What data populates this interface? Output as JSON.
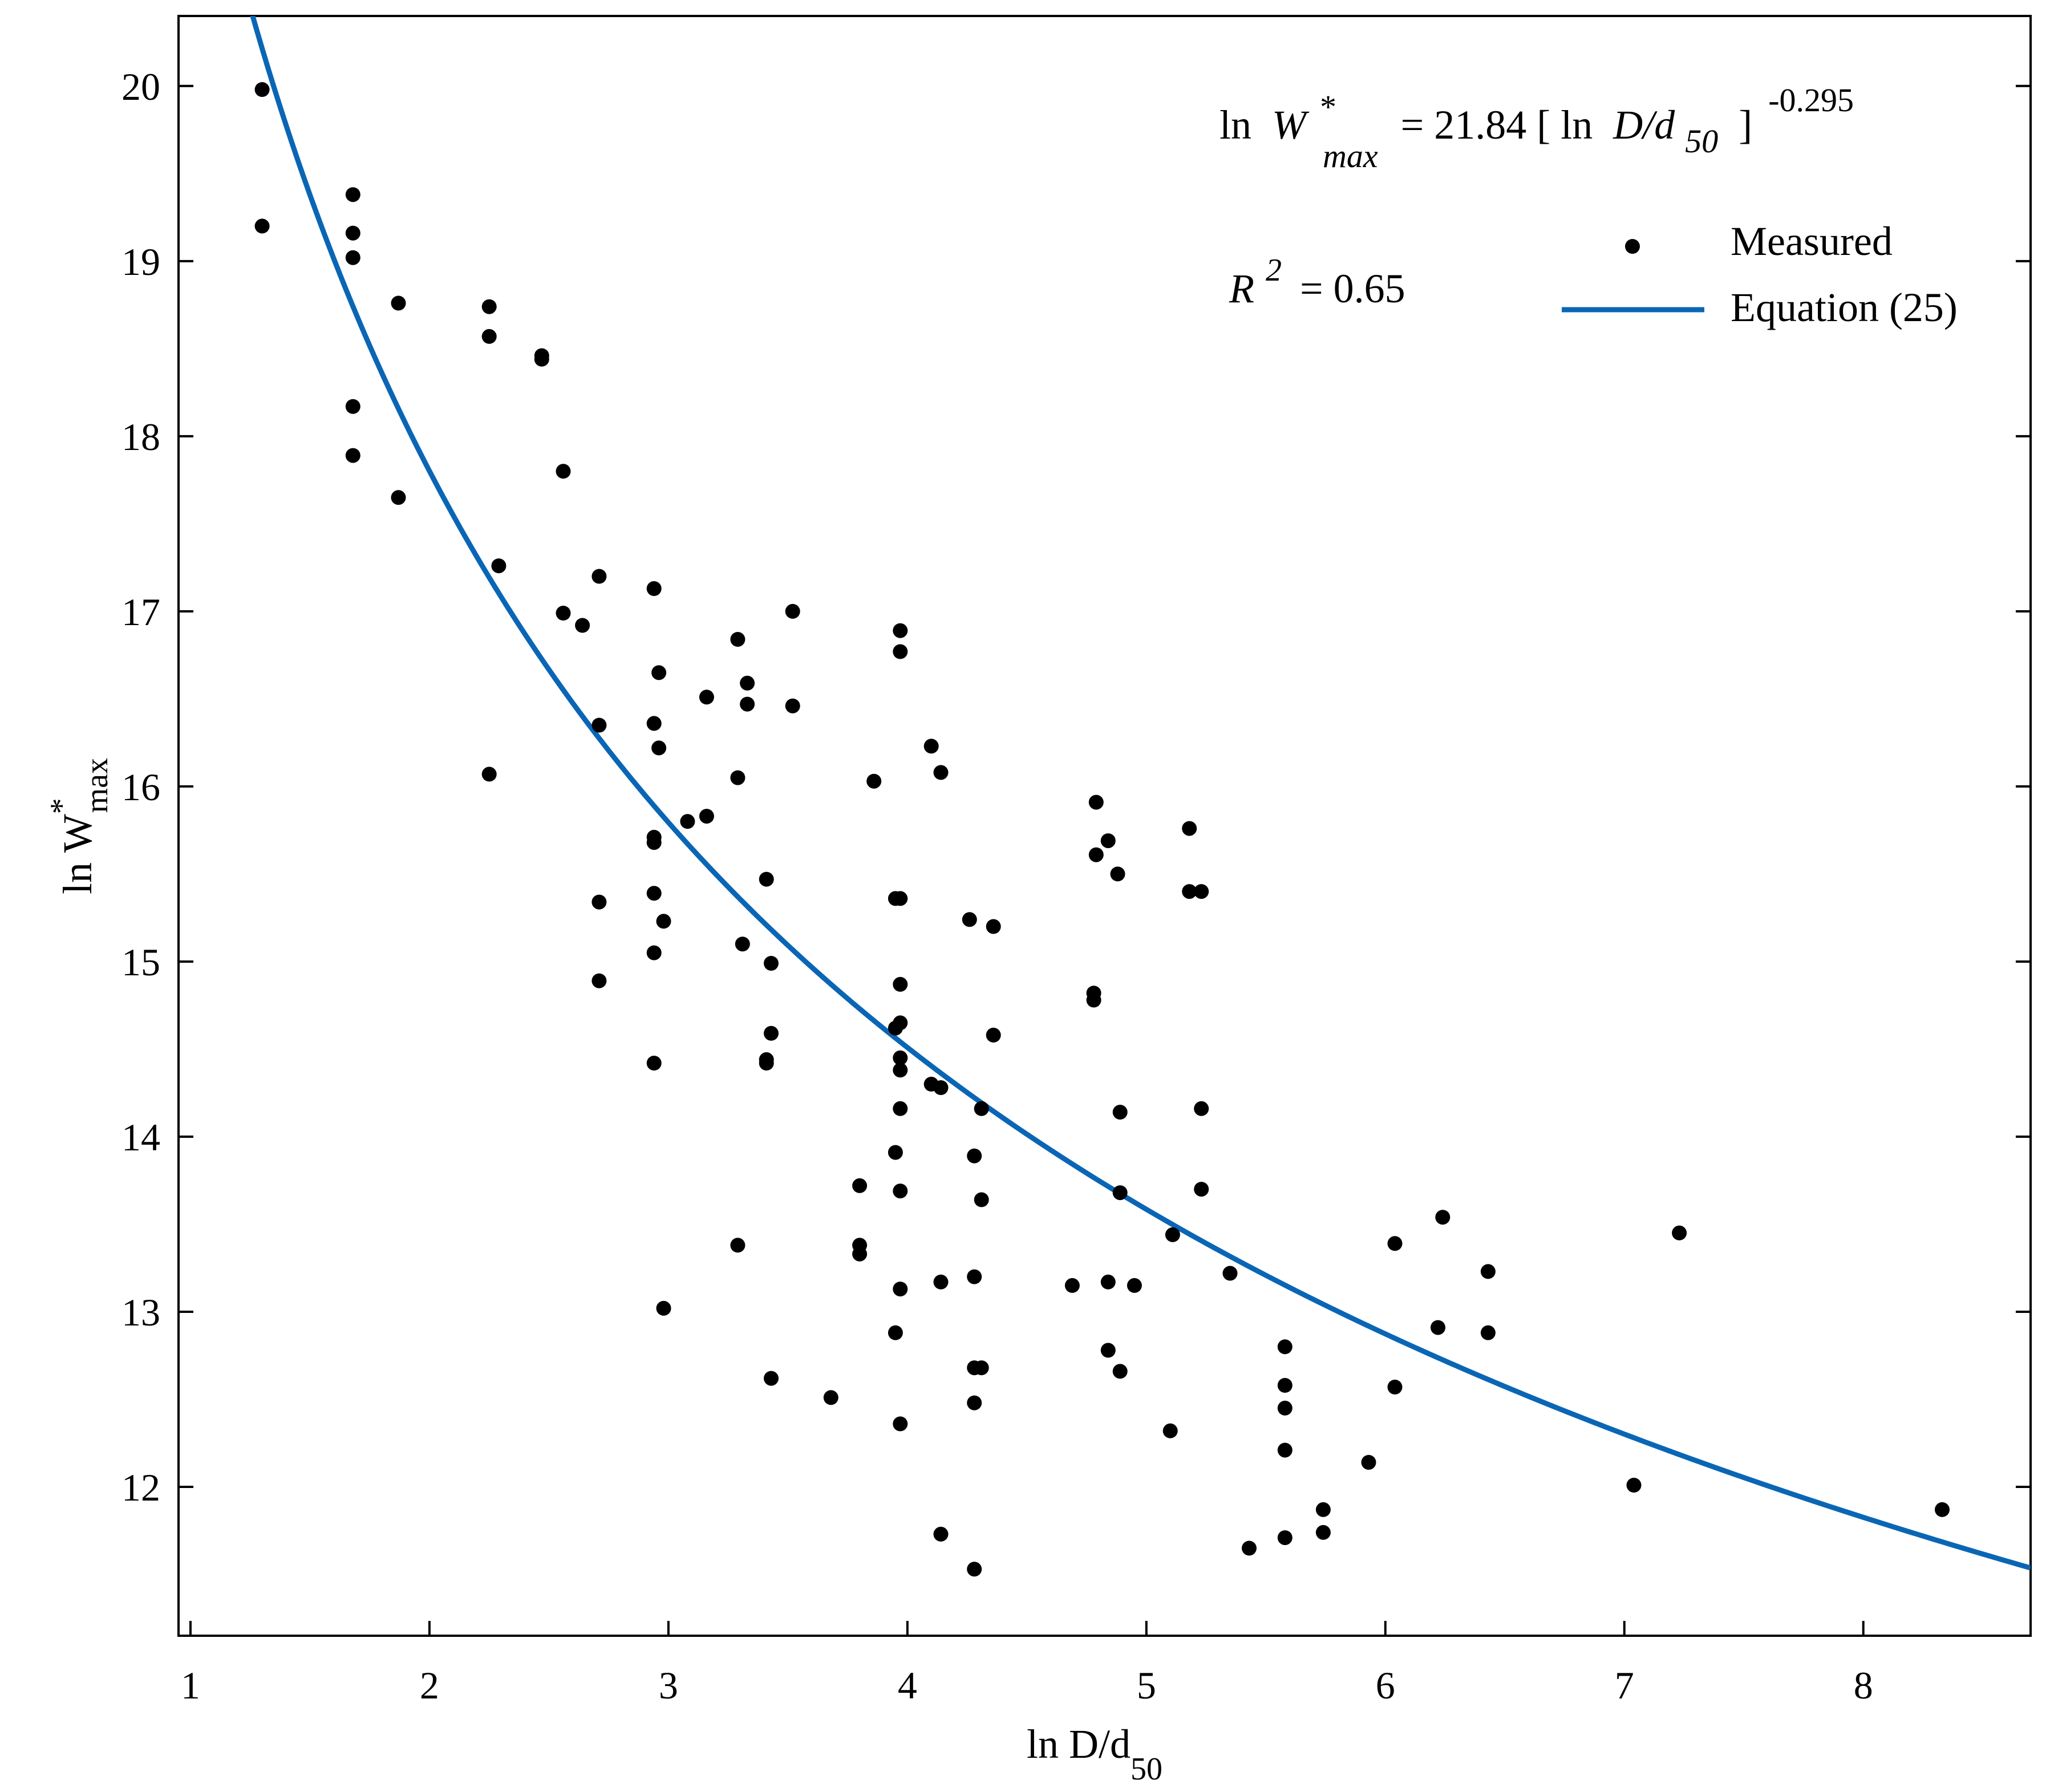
{
  "chart_data": {
    "type": "scatter",
    "title": "",
    "xlabel": "ln D/d",
    "xlabel_sub": "50",
    "ylabel": "ln W",
    "ylabel_sup": "*",
    "ylabel_sub": "max",
    "xlim": [
      0.95,
      8.7
    ],
    "ylim": [
      11.15,
      20.4
    ],
    "xticks": [
      1,
      2,
      3,
      4,
      5,
      6,
      7,
      8
    ],
    "yticks": [
      12,
      13,
      14,
      15,
      16,
      17,
      18,
      19,
      20
    ],
    "grid": false,
    "legend_position": "top-right",
    "colors": {
      "points": "#000000",
      "curve": "#0a66b5",
      "axis": "#000000"
    },
    "equation": {
      "lhs_prefix": "ln",
      "lhs_var": "W",
      "lhs_sup": "*",
      "lhs_sub": "max",
      "rhs_main": "= 21.84 [ ln",
      "rhs_var": "D/d",
      "rhs_sub": "50",
      "rhs_close": "]",
      "rhs_exp": "-0.295"
    },
    "r_squared": {
      "var": "R",
      "sup": "2",
      "rest": "= 0.65"
    },
    "series": [
      {
        "name": "Measured",
        "kind": "scatter",
        "points": [
          [
            1.3,
            19.98
          ],
          [
            1.3,
            19.2
          ],
          [
            1.68,
            19.38
          ],
          [
            1.68,
            19.16
          ],
          [
            1.68,
            19.02
          ],
          [
            1.68,
            18.17
          ],
          [
            1.68,
            17.89
          ],
          [
            1.87,
            18.76
          ],
          [
            1.87,
            17.65
          ],
          [
            2.25,
            18.74
          ],
          [
            2.25,
            18.57
          ],
          [
            2.25,
            16.07
          ],
          [
            2.29,
            17.26
          ],
          [
            2.47,
            18.46
          ],
          [
            2.47,
            18.44
          ],
          [
            2.56,
            17.8
          ],
          [
            2.56,
            16.99
          ],
          [
            2.64,
            16.92
          ],
          [
            2.71,
            17.2
          ],
          [
            2.71,
            16.35
          ],
          [
            2.71,
            15.34
          ],
          [
            2.71,
            14.89
          ],
          [
            2.94,
            17.13
          ],
          [
            2.96,
            16.65
          ],
          [
            2.94,
            16.36
          ],
          [
            2.96,
            16.22
          ],
          [
            2.94,
            15.71
          ],
          [
            2.94,
            15.68
          ],
          [
            2.94,
            15.39
          ],
          [
            2.98,
            15.23
          ],
          [
            2.94,
            15.05
          ],
          [
            2.94,
            14.42
          ],
          [
            2.98,
            13.02
          ],
          [
            3.08,
            15.8
          ],
          [
            3.16,
            16.51
          ],
          [
            3.16,
            15.83
          ],
          [
            3.29,
            16.84
          ],
          [
            3.29,
            16.05
          ],
          [
            3.31,
            15.1
          ],
          [
            3.29,
            13.38
          ],
          [
            3.33,
            16.59
          ],
          [
            3.33,
            16.47
          ],
          [
            3.41,
            15.47
          ],
          [
            3.41,
            14.44
          ],
          [
            3.41,
            14.42
          ],
          [
            3.43,
            14.99
          ],
          [
            3.43,
            14.59
          ],
          [
            3.43,
            12.62
          ],
          [
            3.52,
            17.0
          ],
          [
            3.52,
            16.46
          ],
          [
            3.68,
            12.51
          ],
          [
            3.8,
            13.72
          ],
          [
            3.8,
            13.38
          ],
          [
            3.8,
            13.33
          ],
          [
            3.86,
            16.03
          ],
          [
            3.95,
            15.36
          ],
          [
            3.95,
            14.62
          ],
          [
            3.95,
            13.91
          ],
          [
            3.95,
            12.88
          ],
          [
            3.97,
            16.89
          ],
          [
            3.97,
            16.77
          ],
          [
            3.97,
            15.36
          ],
          [
            3.97,
            14.87
          ],
          [
            3.97,
            14.65
          ],
          [
            3.97,
            14.45
          ],
          [
            3.97,
            14.38
          ],
          [
            3.97,
            14.16
          ],
          [
            3.97,
            13.69
          ],
          [
            3.97,
            13.13
          ],
          [
            3.97,
            12.36
          ],
          [
            4.1,
            16.23
          ],
          [
            4.1,
            14.3
          ],
          [
            4.14,
            16.08
          ],
          [
            4.14,
            14.28
          ],
          [
            4.14,
            13.17
          ],
          [
            4.14,
            11.73
          ],
          [
            4.26,
            15.24
          ],
          [
            4.28,
            13.89
          ],
          [
            4.28,
            13.2
          ],
          [
            4.28,
            12.68
          ],
          [
            4.28,
            12.48
          ],
          [
            4.28,
            11.53
          ],
          [
            4.31,
            14.16
          ],
          [
            4.31,
            13.64
          ],
          [
            4.31,
            12.68
          ],
          [
            4.36,
            15.2
          ],
          [
            4.36,
            14.58
          ],
          [
            4.69,
            13.15
          ],
          [
            4.78,
            14.82
          ],
          [
            4.78,
            14.78
          ],
          [
            4.79,
            15.91
          ],
          [
            4.79,
            15.61
          ],
          [
            4.84,
            15.69
          ],
          [
            4.84,
            13.17
          ],
          [
            4.84,
            12.78
          ],
          [
            4.88,
            15.5
          ],
          [
            4.89,
            14.14
          ],
          [
            4.89,
            13.68
          ],
          [
            4.89,
            12.66
          ],
          [
            4.95,
            13.15
          ],
          [
            5.1,
            12.32
          ],
          [
            5.11,
            13.44
          ],
          [
            5.18,
            15.76
          ],
          [
            5.18,
            15.4
          ],
          [
            5.23,
            15.4
          ],
          [
            5.23,
            14.16
          ],
          [
            5.23,
            13.7
          ],
          [
            5.35,
            13.22
          ],
          [
            5.43,
            11.65
          ],
          [
            5.58,
            12.8
          ],
          [
            5.58,
            12.58
          ],
          [
            5.58,
            12.45
          ],
          [
            5.58,
            12.21
          ],
          [
            5.58,
            11.71
          ],
          [
            5.74,
            11.87
          ],
          [
            5.74,
            11.74
          ],
          [
            5.93,
            12.14
          ],
          [
            6.04,
            13.39
          ],
          [
            6.04,
            12.57
          ],
          [
            6.22,
            12.91
          ],
          [
            6.24,
            13.54
          ],
          [
            6.43,
            13.23
          ],
          [
            6.43,
            12.88
          ],
          [
            7.04,
            12.01
          ],
          [
            7.23,
            13.45
          ],
          [
            8.33,
            11.87
          ]
        ]
      },
      {
        "name": "Equation (25)",
        "kind": "line",
        "function": "ln W*max = 21.84 * (ln D/d50)^-0.295",
        "coefficient": 21.84,
        "exponent": -0.295,
        "x_range": [
          1.2,
          8.7
        ]
      }
    ]
  }
}
